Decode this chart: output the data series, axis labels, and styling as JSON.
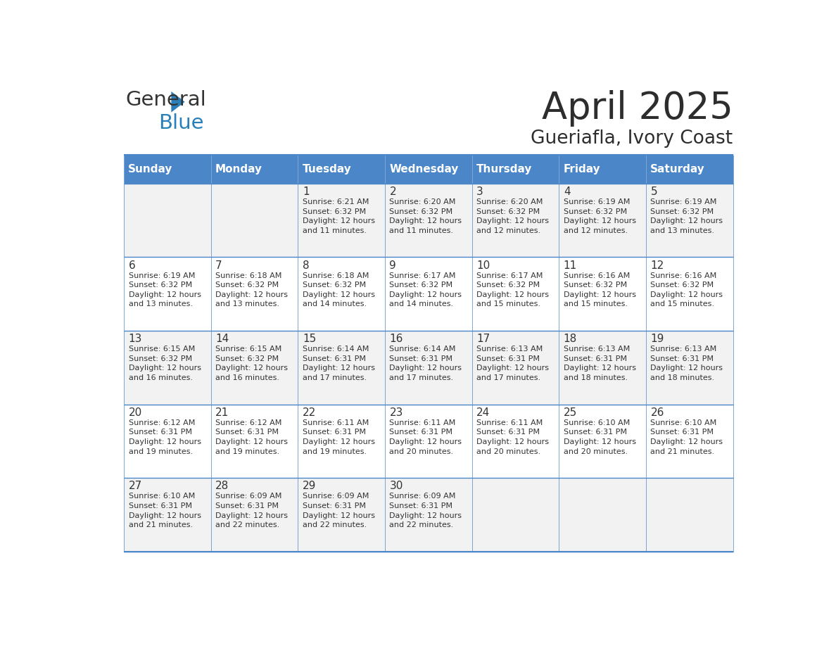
{
  "title": "April 2025",
  "subtitle": "Gueriafla, Ivory Coast",
  "days_of_week": [
    "Sunday",
    "Monday",
    "Tuesday",
    "Wednesday",
    "Thursday",
    "Friday",
    "Saturday"
  ],
  "header_bg": "#4A86C8",
  "header_text": "#FFFFFF",
  "odd_row_bg": "#F2F2F2",
  "even_row_bg": "#FFFFFF",
  "line_color": "#4A86C8",
  "title_color": "#2D2D2D",
  "subtitle_color": "#2D2D2D",
  "cell_text_color": "#333333",
  "day_num_color": "#333333",
  "calendar_data": [
    [
      {
        "day": null,
        "sunrise": null,
        "sunset": null,
        "daylight": null
      },
      {
        "day": null,
        "sunrise": null,
        "sunset": null,
        "daylight": null
      },
      {
        "day": 1,
        "sunrise": "6:21 AM",
        "sunset": "6:32 PM",
        "daylight": "12 hours and 11 minutes."
      },
      {
        "day": 2,
        "sunrise": "6:20 AM",
        "sunset": "6:32 PM",
        "daylight": "12 hours and 11 minutes."
      },
      {
        "day": 3,
        "sunrise": "6:20 AM",
        "sunset": "6:32 PM",
        "daylight": "12 hours and 12 minutes."
      },
      {
        "day": 4,
        "sunrise": "6:19 AM",
        "sunset": "6:32 PM",
        "daylight": "12 hours and 12 minutes."
      },
      {
        "day": 5,
        "sunrise": "6:19 AM",
        "sunset": "6:32 PM",
        "daylight": "12 hours and 13 minutes."
      }
    ],
    [
      {
        "day": 6,
        "sunrise": "6:19 AM",
        "sunset": "6:32 PM",
        "daylight": "12 hours and 13 minutes."
      },
      {
        "day": 7,
        "sunrise": "6:18 AM",
        "sunset": "6:32 PM",
        "daylight": "12 hours and 13 minutes."
      },
      {
        "day": 8,
        "sunrise": "6:18 AM",
        "sunset": "6:32 PM",
        "daylight": "12 hours and 14 minutes."
      },
      {
        "day": 9,
        "sunrise": "6:17 AM",
        "sunset": "6:32 PM",
        "daylight": "12 hours and 14 minutes."
      },
      {
        "day": 10,
        "sunrise": "6:17 AM",
        "sunset": "6:32 PM",
        "daylight": "12 hours and 15 minutes."
      },
      {
        "day": 11,
        "sunrise": "6:16 AM",
        "sunset": "6:32 PM",
        "daylight": "12 hours and 15 minutes."
      },
      {
        "day": 12,
        "sunrise": "6:16 AM",
        "sunset": "6:32 PM",
        "daylight": "12 hours and 15 minutes."
      }
    ],
    [
      {
        "day": 13,
        "sunrise": "6:15 AM",
        "sunset": "6:32 PM",
        "daylight": "12 hours and 16 minutes."
      },
      {
        "day": 14,
        "sunrise": "6:15 AM",
        "sunset": "6:32 PM",
        "daylight": "12 hours and 16 minutes."
      },
      {
        "day": 15,
        "sunrise": "6:14 AM",
        "sunset": "6:31 PM",
        "daylight": "12 hours and 17 minutes."
      },
      {
        "day": 16,
        "sunrise": "6:14 AM",
        "sunset": "6:31 PM",
        "daylight": "12 hours and 17 minutes."
      },
      {
        "day": 17,
        "sunrise": "6:13 AM",
        "sunset": "6:31 PM",
        "daylight": "12 hours and 17 minutes."
      },
      {
        "day": 18,
        "sunrise": "6:13 AM",
        "sunset": "6:31 PM",
        "daylight": "12 hours and 18 minutes."
      },
      {
        "day": 19,
        "sunrise": "6:13 AM",
        "sunset": "6:31 PM",
        "daylight": "12 hours and 18 minutes."
      }
    ],
    [
      {
        "day": 20,
        "sunrise": "6:12 AM",
        "sunset": "6:31 PM",
        "daylight": "12 hours and 19 minutes."
      },
      {
        "day": 21,
        "sunrise": "6:12 AM",
        "sunset": "6:31 PM",
        "daylight": "12 hours and 19 minutes."
      },
      {
        "day": 22,
        "sunrise": "6:11 AM",
        "sunset": "6:31 PM",
        "daylight": "12 hours and 19 minutes."
      },
      {
        "day": 23,
        "sunrise": "6:11 AM",
        "sunset": "6:31 PM",
        "daylight": "12 hours and 20 minutes."
      },
      {
        "day": 24,
        "sunrise": "6:11 AM",
        "sunset": "6:31 PM",
        "daylight": "12 hours and 20 minutes."
      },
      {
        "day": 25,
        "sunrise": "6:10 AM",
        "sunset": "6:31 PM",
        "daylight": "12 hours and 20 minutes."
      },
      {
        "day": 26,
        "sunrise": "6:10 AM",
        "sunset": "6:31 PM",
        "daylight": "12 hours and 21 minutes."
      }
    ],
    [
      {
        "day": 27,
        "sunrise": "6:10 AM",
        "sunset": "6:31 PM",
        "daylight": "12 hours and 21 minutes."
      },
      {
        "day": 28,
        "sunrise": "6:09 AM",
        "sunset": "6:31 PM",
        "daylight": "12 hours and 22 minutes."
      },
      {
        "day": 29,
        "sunrise": "6:09 AM",
        "sunset": "6:31 PM",
        "daylight": "12 hours and 22 minutes."
      },
      {
        "day": 30,
        "sunrise": "6:09 AM",
        "sunset": "6:31 PM",
        "daylight": "12 hours and 22 minutes."
      },
      {
        "day": null,
        "sunrise": null,
        "sunset": null,
        "daylight": null
      },
      {
        "day": null,
        "sunrise": null,
        "sunset": null,
        "daylight": null
      },
      {
        "day": null,
        "sunrise": null,
        "sunset": null,
        "daylight": null
      }
    ]
  ]
}
